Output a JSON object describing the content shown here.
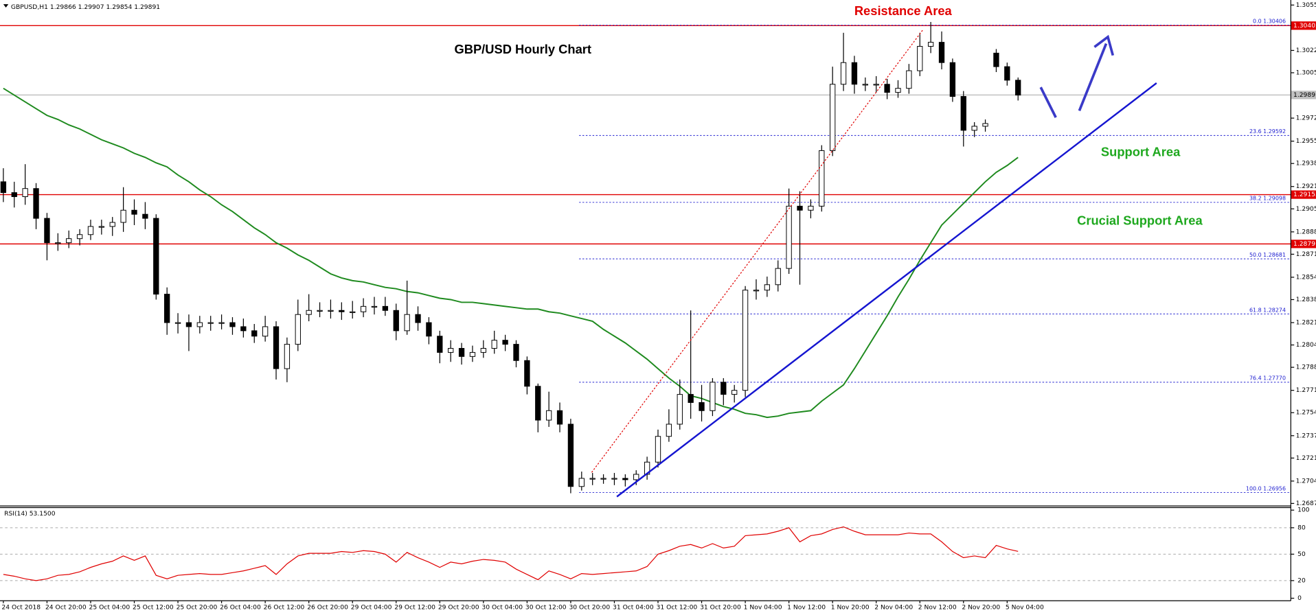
{
  "chart_data": [
    {
      "type": "candlestick",
      "title": "GBP/USD Hourly Chart",
      "symbol": "GBPUSD,H1",
      "quote": [
        1.29866,
        1.29907,
        1.29854,
        1.29891
      ],
      "categories": [
        "24 Oct 2018",
        null,
        null,
        null,
        "24 Oct 20:00",
        null,
        null,
        null,
        "25 Oct 04:00",
        null,
        null,
        null,
        "25 Oct 12:00",
        null,
        null,
        null,
        "25 Oct 20:00",
        null,
        null,
        null,
        "26 Oct 04:00",
        null,
        null,
        null,
        "26 Oct 12:00",
        null,
        null,
        null,
        "26 Oct 20:00",
        null,
        null,
        null,
        "29 Oct 04:00",
        null,
        null,
        null,
        "29 Oct 12:00",
        null,
        null,
        null,
        "29 Oct 20:00",
        null,
        null,
        null,
        "30 Oct 04:00",
        null,
        null,
        null,
        "30 Oct 12:00",
        null,
        null,
        null,
        "30 Oct 20:00",
        null,
        null,
        null,
        "31 Oct 04:00",
        null,
        null,
        null,
        "31 Oct 12:00",
        null,
        null,
        null,
        "31 Oct 20:00",
        null,
        null,
        null,
        "1 Nov 04:00",
        null,
        null,
        null,
        "1 Nov 12:00",
        null,
        null,
        null,
        "1 Nov 20:00",
        null,
        null,
        null,
        "2 Nov 04:00",
        null,
        null,
        null,
        "2 Nov 12:00",
        null,
        null,
        null,
        "2 Nov 20:00",
        null,
        null,
        null,
        "5 Nov 04:00",
        null
      ],
      "open": [
        1.2925,
        1.2917,
        1.2914,
        1.292,
        1.2898,
        1.288,
        1.288,
        1.2883,
        1.2886,
        1.2892,
        1.2892,
        1.2895,
        1.2904,
        1.2901,
        1.2898,
        1.2842,
        1.2821,
        1.2821,
        1.2818,
        1.2821,
        1.2821,
        1.2821,
        1.2818,
        1.2815,
        1.2811,
        1.2818,
        1.2787,
        1.2805,
        1.2827,
        1.283,
        1.283,
        1.283,
        1.2829,
        1.2829,
        1.2833,
        1.2833,
        1.283,
        1.2815,
        1.2827,
        1.2821,
        1.2811,
        1.2799,
        1.2802,
        1.2796,
        1.2799,
        1.2802,
        1.2808,
        1.2805,
        1.2793,
        1.2774,
        1.2749,
        1.2756,
        1.2746,
        1.27,
        1.2706,
        1.2706,
        1.2706,
        1.2706,
        1.2705,
        1.2709,
        1.2718,
        1.2737,
        1.2746,
        1.2768,
        1.2762,
        1.2756,
        1.2777,
        1.2768,
        1.2771,
        1.2845,
        1.2845,
        1.2849,
        1.2861,
        1.2907,
        1.2904,
        1.2907,
        1.2948,
        1.2997,
        1.3013,
        1.2997,
        1.2997,
        1.2997,
        1.2991,
        1.2994,
        1.3007,
        1.3025,
        1.3028,
        1.3013,
        1.2988,
        1.2963,
        1.2966,
        1.302,
        1.301,
        1.3
      ],
      "high": [
        1.2935,
        1.2925,
        1.2938,
        1.2924,
        1.2902,
        1.2887,
        1.2889,
        1.289,
        1.2897,
        1.2897,
        1.2899,
        1.2921,
        1.2912,
        1.291,
        1.2901,
        1.2847,
        1.2828,
        1.2827,
        1.2826,
        1.2826,
        1.2827,
        1.2825,
        1.2824,
        1.282,
        1.2826,
        1.2822,
        1.281,
        1.2838,
        1.2842,
        1.2836,
        1.2838,
        1.2836,
        1.2837,
        1.2839,
        1.284,
        1.284,
        1.2835,
        1.2852,
        1.2833,
        1.2825,
        1.2815,
        1.2808,
        1.2806,
        1.2804,
        1.2808,
        1.2815,
        1.2812,
        1.2808,
        1.2796,
        1.2776,
        1.277,
        1.2762,
        1.275,
        1.2711,
        1.271,
        1.2709,
        1.271,
        1.2709,
        1.2712,
        1.2722,
        1.2742,
        1.2757,
        1.2779,
        1.283,
        1.2775,
        1.278,
        1.278,
        1.2775,
        1.2848,
        1.2853,
        1.2855,
        1.2867,
        1.292,
        1.2918,
        1.2912,
        1.2952,
        1.301,
        1.3035,
        1.3018,
        1.3002,
        1.3003,
        1.3001,
        1.3,
        1.3012,
        1.3035,
        1.3043,
        1.3036,
        1.3016,
        1.2992,
        1.2969,
        1.2971,
        1.3023,
        1.3013,
        1.3002
      ],
      "low": [
        1.291,
        1.2906,
        1.2908,
        1.289,
        1.2867,
        1.2874,
        1.2876,
        1.2878,
        1.2882,
        1.2886,
        1.2885,
        1.2888,
        1.2893,
        1.289,
        1.2838,
        1.2812,
        1.2813,
        1.28,
        1.2813,
        1.2815,
        1.2816,
        1.2812,
        1.281,
        1.2806,
        1.2807,
        1.2779,
        1.2777,
        1.28,
        1.2822,
        1.2825,
        1.2824,
        1.2823,
        1.2824,
        1.2825,
        1.2827,
        1.2826,
        1.2808,
        1.2812,
        1.2815,
        1.2805,
        1.2791,
        1.2792,
        1.279,
        1.2792,
        1.2795,
        1.2798,
        1.28,
        1.2788,
        1.2768,
        1.274,
        1.2744,
        1.274,
        1.2695,
        1.2697,
        1.2701,
        1.2702,
        1.2701,
        1.27,
        1.2701,
        1.2705,
        1.2714,
        1.2733,
        1.2742,
        1.275,
        1.2748,
        1.2752,
        1.276,
        1.2762,
        1.2766,
        1.2838,
        1.284,
        1.2844,
        1.2857,
        1.2849,
        1.2898,
        1.2903,
        1.2944,
        1.2992,
        1.299,
        1.2992,
        1.2991,
        1.2986,
        1.2987,
        1.299,
        1.3003,
        1.302,
        1.3008,
        1.2984,
        1.2951,
        1.2958,
        1.2962,
        1.3006,
        1.2996,
        1.2985
      ],
      "close": [
        1.2917,
        1.2914,
        1.292,
        1.2898,
        1.288,
        1.288,
        1.2883,
        1.2886,
        1.2892,
        1.2892,
        1.2895,
        1.2904,
        1.2901,
        1.2898,
        1.2842,
        1.2821,
        1.2821,
        1.2818,
        1.2821,
        1.2821,
        1.2821,
        1.2818,
        1.2815,
        1.2811,
        1.2818,
        1.2787,
        1.2805,
        1.2827,
        1.283,
        1.283,
        1.283,
        1.2829,
        1.2829,
        1.2833,
        1.2833,
        1.283,
        1.2815,
        1.2827,
        1.2821,
        1.2811,
        1.2799,
        1.2802,
        1.2796,
        1.2799,
        1.2802,
        1.2808,
        1.2805,
        1.2793,
        1.2774,
        1.2749,
        1.2756,
        1.2746,
        1.27,
        1.2706,
        1.2706,
        1.2706,
        1.2706,
        1.2705,
        1.2709,
        1.2718,
        1.2737,
        1.2746,
        1.2768,
        1.2762,
        1.2756,
        1.2777,
        1.2768,
        1.2771,
        1.2845,
        1.2845,
        1.2849,
        1.2861,
        1.2907,
        1.2904,
        1.2907,
        1.2948,
        1.2997,
        1.3013,
        1.2997,
        1.2997,
        1.2997,
        1.2991,
        1.2994,
        1.3007,
        1.3025,
        1.3028,
        1.3013,
        1.2988,
        1.2963,
        1.2966,
        1.2968,
        1.301,
        1.3,
        1.2989
      ],
      "up_color": "#ffffff",
      "down_color": "#000000",
      "moving_average": {
        "color": "#1e8a1e",
        "values": [
          1.2994,
          1.2989,
          1.2984,
          1.2979,
          1.2974,
          1.2971,
          1.2967,
          1.2964,
          1.296,
          1.2956,
          1.2953,
          1.295,
          1.2946,
          1.2943,
          1.2939,
          1.2936,
          1.293,
          1.2925,
          1.2919,
          1.2914,
          1.2908,
          1.2903,
          1.2897,
          1.2891,
          1.2886,
          1.288,
          1.2876,
          1.2871,
          1.2867,
          1.2862,
          1.2857,
          1.2854,
          1.2852,
          1.2851,
          1.2849,
          1.2847,
          1.2846,
          1.2844,
          1.2843,
          1.2841,
          1.2839,
          1.2838,
          1.2836,
          1.2836,
          1.2835,
          1.2834,
          1.2833,
          1.2832,
          1.2831,
          1.2831,
          1.2829,
          1.2828,
          1.2826,
          1.2824,
          1.2822,
          1.2816,
          1.2811,
          1.2806,
          1.28,
          1.2794,
          1.2787,
          1.278,
          1.2774,
          1.2767,
          1.2765,
          1.2762,
          1.2759,
          1.2757,
          1.2754,
          1.2753,
          1.2751,
          1.2752,
          1.2754,
          1.2755,
          1.2756,
          1.2763,
          1.2769,
          1.2775,
          1.2787,
          1.28,
          1.2813,
          1.2826,
          1.284,
          1.2853,
          1.2867,
          1.288,
          1.2893,
          1.2901,
          1.2909,
          1.2917,
          1.2925,
          1.2932,
          1.2937,
          1.2943
        ]
      },
      "ylim": [
        1.26875,
        1.30555
      ],
      "yticks": [
        1.30555,
        {
          "value": 1.3022,
          "label": "1.30220"
        },
        1.30055,
        {
          "value": 1.2972,
          "label": "1.29720"
        },
        {
          "value": 1.2955,
          "label": "1.29550"
        },
        1.29385,
        1.29215,
        {
          "value": 1.2905,
          "label": "1.29050"
        },
        {
          "value": 1.2888,
          "label": "1.28880"
        },
        1.28715,
        1.28545,
        {
          "value": 1.2838,
          "label": "1.28380"
        },
        {
          "value": 1.2821,
          "label": "1.28210"
        },
        1.28045,
        {
          "value": 1.2788,
          "label": "1.27880"
        },
        {
          "value": 1.2771,
          "label": "1.27710"
        },
        1.27545,
        1.27375,
        {
          "value": 1.2721,
          "label": "1.27210"
        },
        {
          "value": 1.2704,
          "label": "1.27040"
        },
        1.26875
      ],
      "levels": [
        {
          "value": 1.29891,
          "color": "#c0c0c0",
          "label_color": "#000000"
        },
        {
          "value": 1.30403,
          "color": "#e00000",
          "label_color": "#ffffff"
        },
        {
          "value": 1.29155,
          "color": "#e00000",
          "label_color": "#ffffff"
        },
        {
          "value": 1.28791,
          "color": "#e00000",
          "label_color": "#ffffff"
        }
      ],
      "fib_color": "#2020d0",
      "fibonacci": [
        {
          "level": "0.0",
          "price": 1.30406
        },
        {
          "level": "23.6",
          "price": 1.29592
        },
        {
          "level": "38.2",
          "price": 1.29098
        },
        {
          "level": "50.0",
          "price": 1.28681
        },
        {
          "level": "61.8",
          "price": 1.28274
        },
        {
          "level": "76.4",
          "price": {
            "value": 1.2777,
            "label": "1.27770"
          }
        },
        {
          "level": "100.0",
          "price": 1.26956
        }
      ],
      "annotations": [
        {
          "text": "Resistance Area",
          "color": "#e00000"
        },
        {
          "text": "Support Area",
          "color": "#1ea81e"
        },
        {
          "text": "Crucial Support Area",
          "color": "#1ea81e"
        }
      ]
    },
    {
      "type": "line",
      "name": "RSI(14)",
      "last": {
        "value": 53.15,
        "label": "53.1500"
      },
      "color": "#e00000",
      "values": [
        27,
        25,
        22,
        20,
        22,
        26,
        27,
        30,
        35,
        39,
        42,
        48,
        43,
        48,
        26,
        22,
        26,
        27,
        28,
        27,
        27,
        29,
        31,
        34,
        37,
        27,
        39,
        48,
        51,
        51,
        51,
        53,
        52,
        54,
        53,
        50,
        41,
        52,
        46,
        41,
        35,
        41,
        39,
        42,
        44,
        43,
        41,
        33,
        27,
        21,
        31,
        27,
        22,
        28,
        27,
        28,
        29,
        30,
        31,
        36,
        50,
        54,
        59,
        61,
        57,
        62,
        57,
        59,
        71,
        72,
        73,
        76,
        80,
        64,
        71,
        73,
        78,
        81,
        76,
        72,
        72,
        72,
        72,
        74,
        73,
        73,
        64,
        53,
        46,
        48,
        46,
        60,
        56,
        53.15
      ],
      "ylim": [
        0,
        100
      ],
      "yticks": [
        0,
        20,
        50,
        80,
        100
      ]
    }
  ]
}
